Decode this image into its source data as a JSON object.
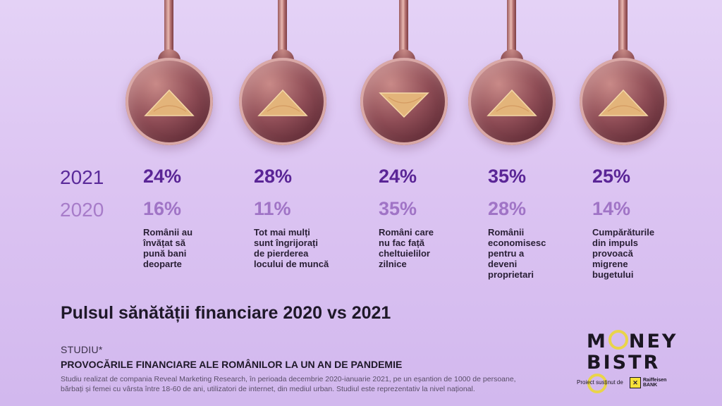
{
  "years": {
    "current": "2021",
    "previous": "2020"
  },
  "stats": [
    {
      "pct_2021": "24%",
      "pct_2020": "16%",
      "direction": "up",
      "desc": "Românii au\nînvățat să\npună bani\ndeoparte"
    },
    {
      "pct_2021": "28%",
      "pct_2020": "11%",
      "direction": "up",
      "desc": "Tot mai mulți\nsunt îngrijorați\nde pierderea\nlocului de muncă"
    },
    {
      "pct_2021": "24%",
      "pct_2020": "35%",
      "direction": "down",
      "desc": "Români care\nnu fac față\ncheltuielilor\nzilnice"
    },
    {
      "pct_2021": "35%",
      "pct_2020": "28%",
      "direction": "up",
      "desc": "Românii\neconomisesc\npentru a\ndeveni\nproprietari"
    },
    {
      "pct_2021": "25%",
      "pct_2020": "14%",
      "direction": "up",
      "desc": "Cumpărăturile\ndin impuls\nprovoacă\nmigrene\nbugetului"
    }
  ],
  "title": "Pulsul sănătății financiare 2020 vs 2021",
  "study": {
    "label": "STUDIU*",
    "name": "PROVOCĂRILE FINANCIARE ALE ROMÂNILOR LA UN AN DE PANDEMIE",
    "footnote": "Studiu realizat de compania Reveal Marketing Research, în perioada decembrie 2020-ianuarie 2021, pe un eșantion de 1000 de persoane, bărbați și femei cu vârsta între 18-60 de ani, utilizatori de internet, din mediul urban. Studiul este reprezentativ la nivel național."
  },
  "brand": {
    "line1_a": "M",
    "line1_b": "NEY",
    "line2_a": "BISTR",
    "supported_by": "Proiect susținut de",
    "bank_name": "Raiffeisen\nBANK"
  },
  "colors": {
    "accent_2021": "#5a2596",
    "accent_2020": "#a074c6",
    "wood": "#e3b47a",
    "brand_yellow": "#e9d44a"
  }
}
